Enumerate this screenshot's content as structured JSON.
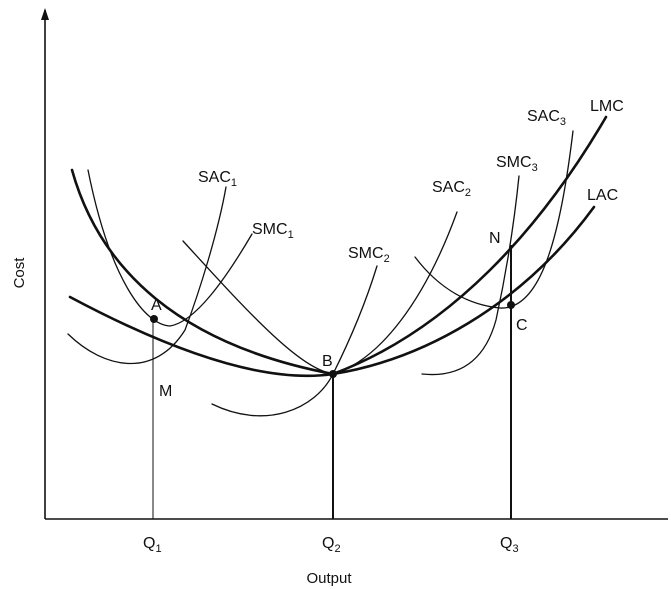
{
  "figure": {
    "y_axis_label": "Cost",
    "x_axis_label": "Output",
    "ticks": [
      {
        "base": "Q",
        "sub": "1"
      },
      {
        "base": "Q",
        "sub": "2"
      },
      {
        "base": "Q",
        "sub": "3"
      }
    ],
    "curve_labels": {
      "sac1": {
        "base": "SAC",
        "sub": "1"
      },
      "smc1": {
        "base": "SMC",
        "sub": "1"
      },
      "smc2": {
        "base": "SMC",
        "sub": "2"
      },
      "sac2": {
        "base": "SAC",
        "sub": "2"
      },
      "smc3": {
        "base": "SMC",
        "sub": "3"
      },
      "sac3": {
        "base": "SAC",
        "sub": "3"
      },
      "lmc": "LMC",
      "lac": "LAC"
    },
    "points": {
      "a": "A",
      "m": "M",
      "b": "B",
      "n": "N",
      "c": "C"
    }
  }
}
